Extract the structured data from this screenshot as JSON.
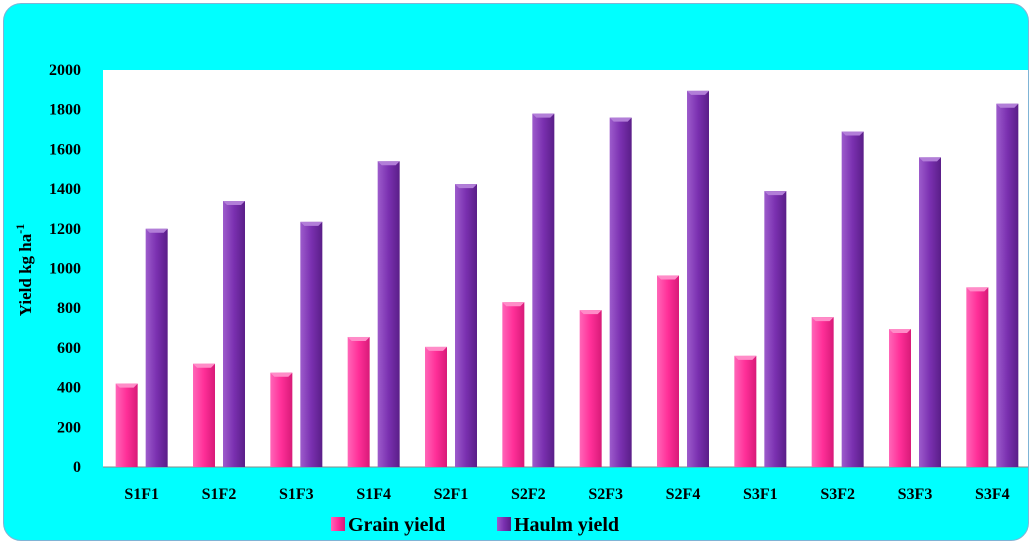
{
  "chart_data": {
    "type": "bar",
    "categories": [
      "S1F1",
      "S1F2",
      "S1F3",
      "S1F4",
      "S2F1",
      "S2F2",
      "S2F3",
      "S2F4",
      "S3F1",
      "S3F2",
      "S3F3",
      "S3F4"
    ],
    "series": [
      {
        "name": "Grain yield",
        "values": [
          420,
          520,
          475,
          655,
          605,
          830,
          790,
          965,
          560,
          755,
          695,
          905
        ],
        "color": "#ff3399"
      },
      {
        "name": "Haulm yield",
        "values": [
          1200,
          1340,
          1235,
          1540,
          1425,
          1780,
          1760,
          1895,
          1390,
          1690,
          1560,
          1830
        ],
        "color": "#7a30b0"
      }
    ],
    "ylabel": "Yield kg ha",
    "ylabel_sup": "-1",
    "ylim": [
      0,
      2000
    ],
    "yticks": [
      "0",
      "200",
      "400",
      "600",
      "800",
      "1000",
      "1200",
      "1400",
      "1600",
      "1800",
      "2000"
    ],
    "grid": false,
    "legend_position": "bottom"
  }
}
